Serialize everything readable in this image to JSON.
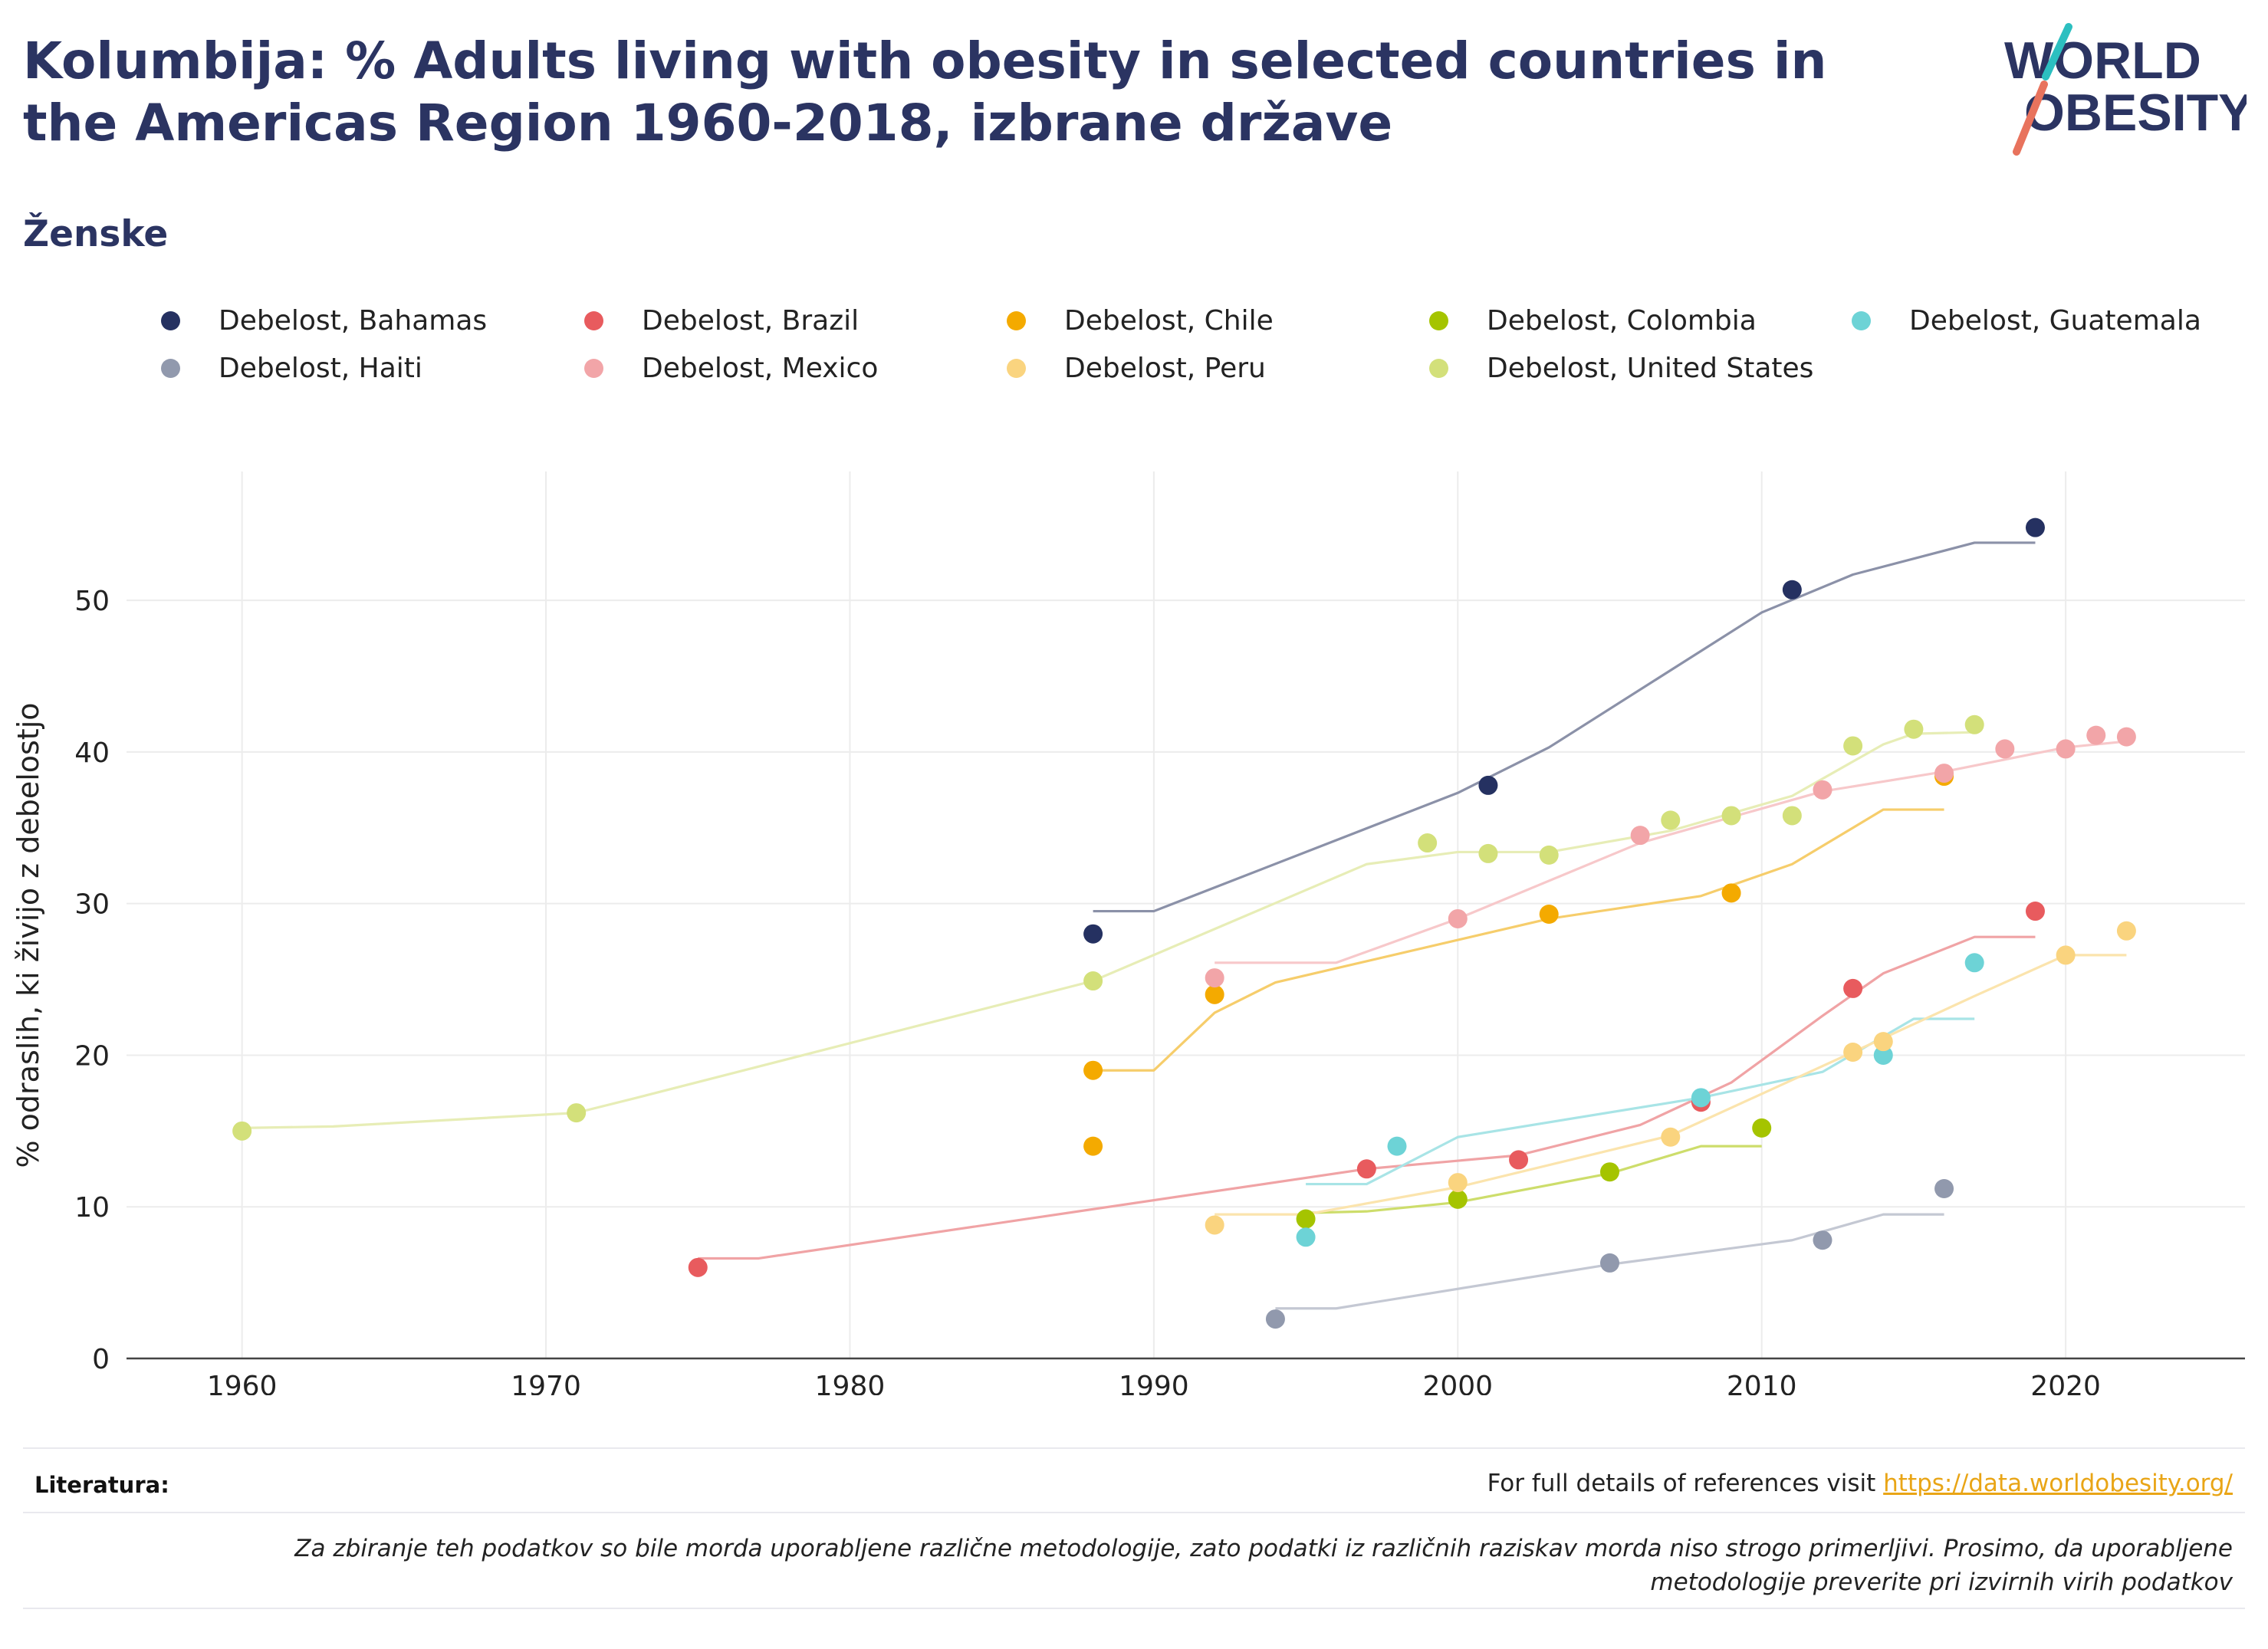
{
  "header": {
    "title": "Kolumbija: % Adults living with obesity in selected countries in the Americas Region 1960-2018, izbrane države",
    "subtitle": "Ženske"
  },
  "logo": {
    "line1": "WORLD",
    "line2": "OBESITY",
    "text_color": "#2b3462",
    "slash_colors": [
      "#2cbfc0",
      "#e8735d"
    ]
  },
  "footer": {
    "references_label": "Literatura:",
    "references_text": "For full details of references visit ",
    "references_link": "https://data.worldobesity.org/",
    "note": "Za zbiranje teh podatkov so bile morda uporabljene različne metodologije, zato podatki iz različnih raziskav morda niso strogo primerljivi. Prosimo, da uporabljene metodologije preverite pri izvirnih virih podatkov"
  },
  "chart_data": {
    "type": "scatter",
    "ylabel": "% odraslih, ki živijo z debelostjo",
    "xlim": [
      1956.2,
      2025.9
    ],
    "ylim": [
      0,
      58.5
    ],
    "x_ticks": [
      1960,
      1970,
      1980,
      1990,
      2000,
      2010,
      2020
    ],
    "y_ticks": [
      0,
      10,
      20,
      30,
      40,
      50
    ],
    "grid": true,
    "legend_position": "top",
    "series": [
      {
        "name": "Debelost, Bahamas",
        "color": "#253161",
        "line_color": "#8b91a8",
        "points": [
          [
            1988,
            28.0
          ],
          [
            2001,
            37.8
          ],
          [
            2011,
            50.7
          ],
          [
            2019,
            54.8
          ]
        ],
        "trend": [
          [
            1988,
            29.5
          ],
          [
            1990,
            29.5
          ],
          [
            2000,
            37.3
          ],
          [
            2003,
            40.3
          ],
          [
            2010,
            49.2
          ],
          [
            2013,
            51.7
          ],
          [
            2017,
            53.8
          ],
          [
            2019,
            53.8
          ]
        ]
      },
      {
        "name": "Debelost, Brazil",
        "color": "#e85b5e",
        "line_color": "#f0a3a5",
        "points": [
          [
            1975,
            6.0
          ],
          [
            1997,
            12.5
          ],
          [
            2002,
            13.1
          ],
          [
            2008,
            16.9
          ],
          [
            2013,
            24.4
          ],
          [
            2019,
            29.5
          ]
        ],
        "trend": [
          [
            1975,
            6.6
          ],
          [
            1977,
            6.6
          ],
          [
            1997,
            12.5
          ],
          [
            2002,
            13.4
          ],
          [
            2006,
            15.4
          ],
          [
            2009,
            18.2
          ],
          [
            2012,
            22.6
          ],
          [
            2014,
            25.4
          ],
          [
            2017,
            27.8
          ],
          [
            2019,
            27.8
          ]
        ]
      },
      {
        "name": "Debelost, Chile",
        "color": "#f4aa00",
        "line_color": "#f6cd6b",
        "points": [
          [
            1988,
            14.0
          ],
          [
            1988,
            19.0
          ],
          [
            1992,
            24.0
          ],
          [
            2003,
            29.3
          ],
          [
            2009,
            30.7
          ],
          [
            2016,
            38.4
          ]
        ],
        "trend": [
          [
            1988,
            19.0
          ],
          [
            1990,
            19.0
          ],
          [
            1992,
            22.8
          ],
          [
            1994,
            24.8
          ],
          [
            2003,
            29.0
          ],
          [
            2008,
            30.5
          ],
          [
            2011,
            32.6
          ],
          [
            2014,
            36.2
          ],
          [
            2016,
            36.2
          ]
        ]
      },
      {
        "name": "Debelost, Colombia",
        "color": "#a5c400",
        "line_color": "#cddd6b",
        "points": [
          [
            1995,
            9.2
          ],
          [
            2000,
            10.5
          ],
          [
            2005,
            12.3
          ],
          [
            2010,
            15.2
          ]
        ],
        "trend": [
          [
            1995,
            9.6
          ],
          [
            1997,
            9.7
          ],
          [
            2000,
            10.3
          ],
          [
            2005,
            12.2
          ],
          [
            2008,
            14.0
          ],
          [
            2010,
            14.0
          ]
        ]
      },
      {
        "name": "Debelost, Guatemala",
        "color": "#6dd3d6",
        "line_color": "#a8e4e6",
        "points": [
          [
            1995,
            8.0
          ],
          [
            1998,
            14.0
          ],
          [
            2008,
            17.2
          ],
          [
            2014,
            20.0
          ],
          [
            2017,
            26.1
          ]
        ],
        "trend": [
          [
            1995,
            11.5
          ],
          [
            1997,
            11.5
          ],
          [
            2000,
            14.6
          ],
          [
            2008,
            17.2
          ],
          [
            2012,
            18.9
          ],
          [
            2015,
            22.4
          ],
          [
            2017,
            22.4
          ]
        ]
      },
      {
        "name": "Debelost, Haiti",
        "color": "#9199ad",
        "line_color": "#c4c8d3",
        "points": [
          [
            1994,
            2.6
          ],
          [
            2005,
            6.3
          ],
          [
            2012,
            7.8
          ],
          [
            2016,
            11.2
          ]
        ],
        "trend": [
          [
            1994,
            3.3
          ],
          [
            1996,
            3.3
          ],
          [
            2005,
            6.2
          ],
          [
            2011,
            7.8
          ],
          [
            2014,
            9.5
          ],
          [
            2016,
            9.5
          ]
        ]
      },
      {
        "name": "Debelost, Mexico",
        "color": "#f2a5a8",
        "line_color": "#f7c8ca",
        "points": [
          [
            1992,
            25.1
          ],
          [
            2000,
            29.0
          ],
          [
            2006,
            34.5
          ],
          [
            2012,
            37.5
          ],
          [
            2016,
            38.6
          ],
          [
            2018,
            40.2
          ],
          [
            2020,
            40.2
          ],
          [
            2021,
            41.1
          ],
          [
            2022,
            41.0
          ]
        ],
        "trend": [
          [
            1992,
            26.1
          ],
          [
            1996,
            26.1
          ],
          [
            2000,
            29.0
          ],
          [
            2006,
            34.0
          ],
          [
            2012,
            37.4
          ],
          [
            2016,
            38.7
          ],
          [
            2020,
            40.3
          ],
          [
            2022,
            40.7
          ]
        ]
      },
      {
        "name": "Debelost, Peru",
        "color": "#fad47f",
        "line_color": "#fbe4ad",
        "points": [
          [
            1992,
            8.8
          ],
          [
            2000,
            11.6
          ],
          [
            2007,
            14.6
          ],
          [
            2013,
            20.2
          ],
          [
            2014,
            20.9
          ],
          [
            2020,
            26.6
          ],
          [
            2022,
            28.2
          ]
        ],
        "trend": [
          [
            1992,
            9.5
          ],
          [
            1995,
            9.5
          ],
          [
            2000,
            11.3
          ],
          [
            2007,
            14.7
          ],
          [
            2013,
            20.2
          ],
          [
            2017,
            23.9
          ],
          [
            2020,
            26.6
          ],
          [
            2022,
            26.6
          ]
        ]
      },
      {
        "name": "Debelost, United States",
        "color": "#d3e07a",
        "line_color": "#e7edb6",
        "points": [
          [
            1960,
            15.0
          ],
          [
            1971,
            16.2
          ],
          [
            1988,
            24.9
          ],
          [
            1999,
            34.0
          ],
          [
            2001,
            33.3
          ],
          [
            2003,
            33.2
          ],
          [
            2007,
            35.5
          ],
          [
            2009,
            35.8
          ],
          [
            2011,
            35.8
          ],
          [
            2013,
            40.4
          ],
          [
            2015,
            41.5
          ],
          [
            2017,
            41.8
          ]
        ],
        "trend": [
          [
            1960,
            15.2
          ],
          [
            1963,
            15.3
          ],
          [
            1971,
            16.2
          ],
          [
            1973,
            17.2
          ],
          [
            1988,
            24.9
          ],
          [
            1997,
            32.6
          ],
          [
            2000,
            33.4
          ],
          [
            2003,
            33.4
          ],
          [
            2007,
            34.8
          ],
          [
            2011,
            37.1
          ],
          [
            2014,
            40.5
          ],
          [
            2015,
            41.2
          ],
          [
            2017,
            41.3
          ]
        ]
      }
    ]
  }
}
